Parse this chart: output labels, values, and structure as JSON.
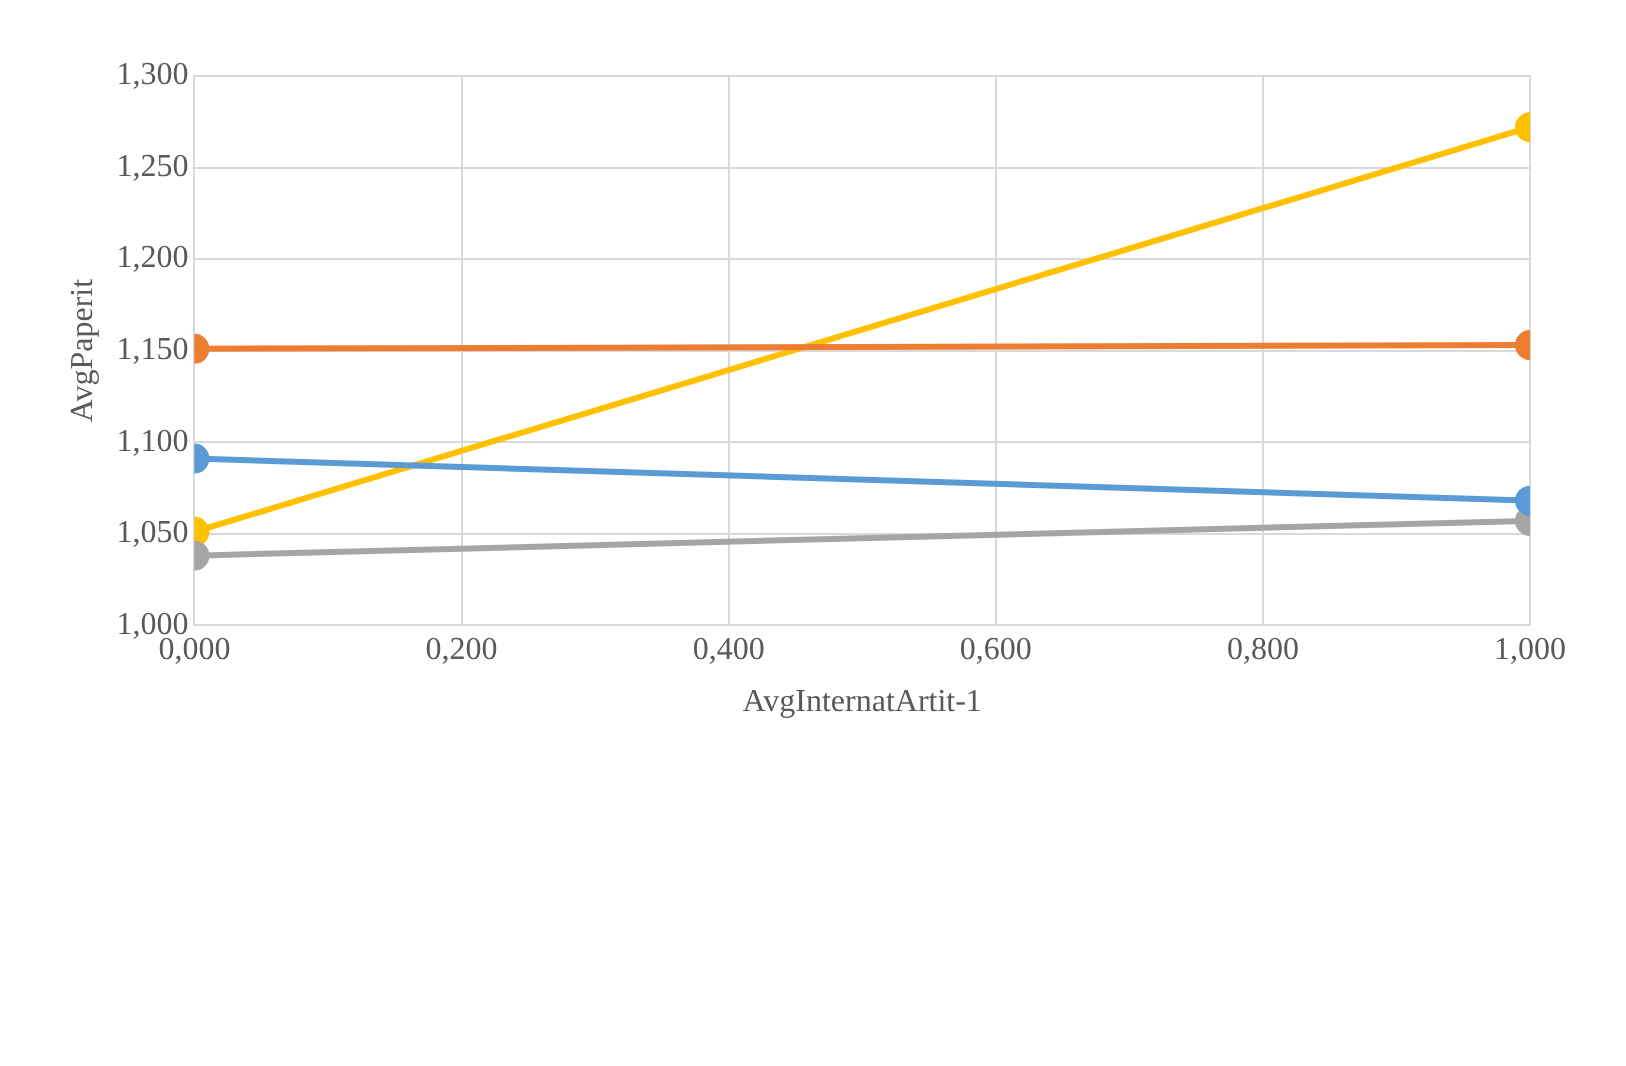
{
  "chart_data": {
    "type": "line",
    "xlabel": "AvgInternatArtit-1",
    "ylabel": "AvgPaperit",
    "x": [
      0,
      1
    ],
    "series": [
      {
        "color": "#5b9bd5",
        "values": [
          1.091,
          1.068
        ]
      },
      {
        "color": "#ed7d31",
        "values": [
          1.151,
          1.153
        ]
      },
      {
        "color": "#a5a5a5",
        "values": [
          1.038,
          1.057
        ]
      },
      {
        "color": "#ffc000",
        "values": [
          1.051,
          1.272
        ]
      }
    ],
    "xlim": [
      0,
      1
    ],
    "xticks": [
      {
        "value": 0,
        "label": "0,000"
      },
      {
        "value": 0.2,
        "label": "0,200"
      },
      {
        "value": 0.4,
        "label": "0,400"
      },
      {
        "value": 0.6,
        "label": "0,600"
      },
      {
        "value": 0.8,
        "label": "0,800"
      },
      {
        "value": 1,
        "label": "1,000"
      }
    ],
    "ylim": [
      1,
      1.3
    ],
    "yticks": [
      {
        "value": 1,
        "label": "1,000"
      },
      {
        "value": 1.05,
        "label": "1,050"
      },
      {
        "value": 1.1,
        "label": "1,100"
      },
      {
        "value": 1.15,
        "label": "1,150"
      },
      {
        "value": 1.2,
        "label": "1,200"
      },
      {
        "value": 1.25,
        "label": "1,250"
      },
      {
        "value": 1.3,
        "label": "1,300"
      }
    ],
    "grid": true,
    "marker": "circle",
    "line_style": "solid",
    "legend": false
  }
}
